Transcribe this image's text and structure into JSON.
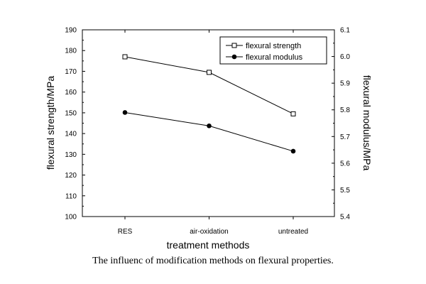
{
  "chart_data": {
    "type": "line",
    "caption": "The influenc of modification methods on flexural properties.",
    "xlabel": "treatment methods",
    "ylabel_left": "flexural strength/MPa",
    "ylabel_right": "flexural modulus/MPa",
    "categories": [
      "RES",
      "air-oxidation",
      "untreated"
    ],
    "ylim_left": [
      100,
      190
    ],
    "ylim_right": [
      5.4,
      6.1
    ],
    "yticks_left": [
      "100",
      "110",
      "120",
      "130",
      "140",
      "150",
      "160",
      "170",
      "180",
      "190"
    ],
    "yticks_right": [
      "5.4",
      "5.5",
      "5.6",
      "5.7",
      "5.8",
      "5.9",
      "6.0",
      "6.1"
    ],
    "grid": false,
    "legend_position": "top-right",
    "series": [
      {
        "name": "flexural strength",
        "axis": "left",
        "marker": "open-square",
        "values": [
          177,
          169.5,
          149.5
        ]
      },
      {
        "name": "flexural modulus",
        "axis": "right",
        "marker": "filled-circle",
        "values": [
          5.79,
          5.74,
          5.645
        ]
      }
    ]
  }
}
